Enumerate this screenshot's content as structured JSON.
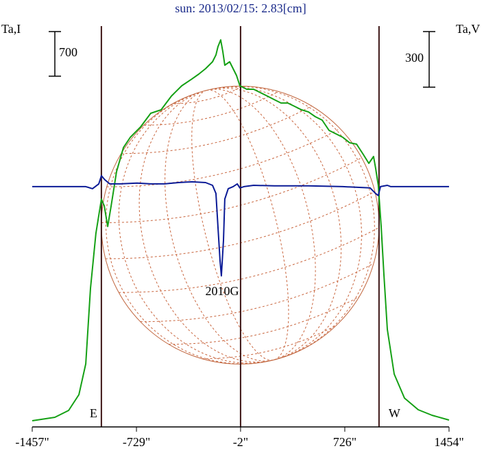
{
  "chart_data": {
    "type": "line",
    "title": "sun: 2013/02/15: 2.83[cm]",
    "ylabel": "Ta,I",
    "y2label": "Ta,V",
    "xlim": [
      -1457,
      1454
    ],
    "xticks": [
      {
        "value": -1457,
        "label": "-1457\""
      },
      {
        "value": -729,
        "label": "-729\""
      },
      {
        "value": -2,
        "label": "-2\""
      },
      {
        "value": 726,
        "label": "726\""
      },
      {
        "value": 1454,
        "label": "1454\""
      }
    ],
    "ylim": [
      -100,
      6190
    ],
    "y2lim": [
      -1296,
      866
    ],
    "y_scale_bar": 700,
    "y2_scale_bar": 300,
    "vlines": [
      {
        "x": -974,
        "label": "E"
      },
      {
        "x": -2
      },
      {
        "x": 965,
        "label": "W"
      }
    ],
    "annotation": {
      "text": "2010G",
      "x": -131,
      "y": -570
    },
    "series": [
      {
        "color": "#14a014",
        "x": [
          -1457,
          -1299,
          -1203,
          -1131,
          -1083,
          -1050,
          -1012,
          -974,
          -954,
          -930,
          -906,
          -868,
          -820,
          -772,
          -701,
          -629,
          -557,
          -485,
          -413,
          -342,
          -294,
          -246,
          -198,
          -174,
          -160,
          -141,
          -126,
          -112,
          -78,
          -54,
          -30,
          -7,
          41,
          89,
          137,
          185,
          233,
          281,
          328,
          376,
          424,
          472,
          520,
          568,
          616,
          664,
          712,
          760,
          808,
          855,
          894,
          927,
          941,
          960,
          980,
          999,
          1023,
          1071,
          1143,
          1239,
          1335,
          1454
        ],
        "values": [
          -3,
          51,
          158,
          406,
          890,
          2076,
          2937,
          3475,
          3368,
          3045,
          3368,
          3906,
          4283,
          4445,
          4606,
          4822,
          4876,
          5091,
          5253,
          5360,
          5436,
          5522,
          5630,
          5737,
          5866,
          5974,
          5791,
          5576,
          5630,
          5522,
          5414,
          5253,
          5199,
          5199,
          5145,
          5091,
          5037,
          4983,
          4983,
          4930,
          4876,
          4843,
          4768,
          4714,
          4553,
          4499,
          4445,
          4359,
          4337,
          4176,
          4036,
          4144,
          3960,
          3691,
          3045,
          2291,
          1429,
          729,
          352,
          169,
          83,
          8
        ]
      },
      {
        "color": "#0a1a96",
        "axis": "y2",
        "x": [
          -1457,
          -1083,
          -1036,
          -992,
          -974,
          -950,
          -916,
          -844,
          -725,
          -629,
          -533,
          -437,
          -342,
          -246,
          -198,
          -174,
          -160,
          -145,
          -136,
          -121,
          -112,
          -88,
          -54,
          -25,
          -7,
          22,
          89,
          233,
          472,
          712,
          903,
          941,
          960,
          975,
          1023,
          1047,
          1454
        ],
        "values": [
          0,
          0,
          -11,
          15,
          59,
          37,
          15,
          15,
          19,
          15,
          15,
          22,
          26,
          22,
          7,
          -37,
          -215,
          -400,
          -481,
          -289,
          -67,
          -11,
          0,
          15,
          -7,
          0,
          7,
          4,
          4,
          0,
          -7,
          -37,
          -48,
          0,
          7,
          0,
          0
        ]
      }
    ]
  }
}
